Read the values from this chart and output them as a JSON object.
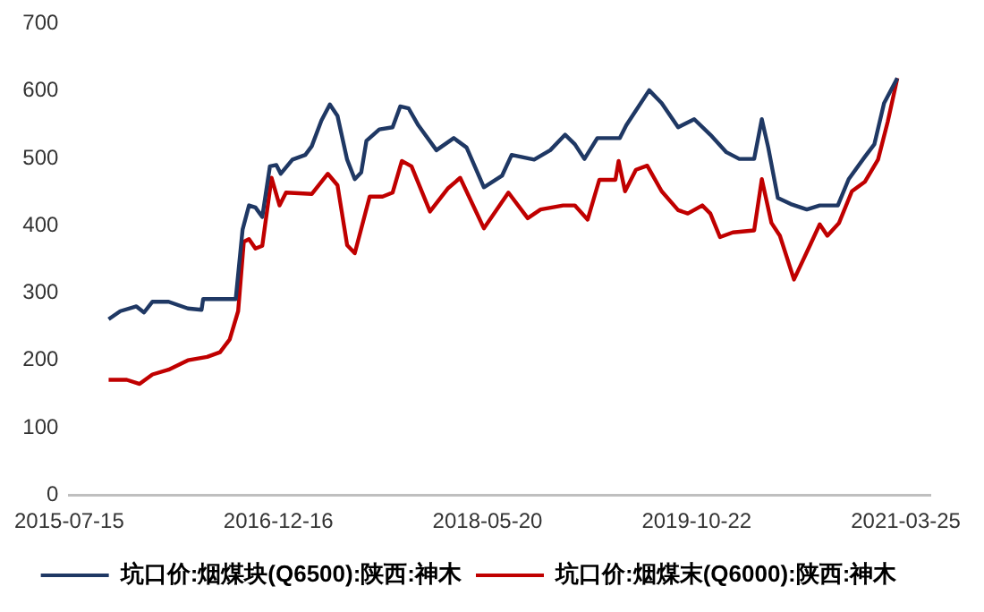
{
  "chart_data": {
    "type": "line",
    "xlim": [
      "2015-07-15",
      "2021-05-25"
    ],
    "xticks": [
      "2015-07-15",
      "2016-12-16",
      "2018-05-20",
      "2019-10-22",
      "2021-03-25"
    ],
    "ylim": [
      0,
      700
    ],
    "yticks": [
      0,
      100,
      200,
      300,
      400,
      500,
      600,
      700
    ],
    "grid": false,
    "legend": "bottom",
    "marker": "none",
    "line_style": "solid",
    "series": [
      {
        "name": "坑口价:烟煤块(Q6500):陕西:神木",
        "color": "#1f3864",
        "x": [
          "2015-10-21",
          "2015-11-19",
          "2015-12-29",
          "2016-01-17",
          "2016-02-07",
          "2016-03-18",
          "2016-05-05",
          "2016-06-08",
          "2016-06-12",
          "2016-09-01",
          "2016-09-18",
          "2016-10-04",
          "2016-10-20",
          "2016-11-06",
          "2016-11-25",
          "2016-12-11",
          "2016-12-22",
          "2017-01-20",
          "2017-02-21",
          "2017-03-09",
          "2017-04-02",
          "2017-04-23",
          "2017-05-12",
          "2017-06-05",
          "2017-06-24",
          "2017-07-10",
          "2017-07-23",
          "2017-08-24",
          "2017-09-26",
          "2017-10-15",
          "2017-11-05",
          "2017-11-29",
          "2018-01-13",
          "2018-02-25",
          "2018-03-29",
          "2018-05-11",
          "2018-06-25",
          "2018-07-19",
          "2018-09-13",
          "2018-10-23",
          "2018-11-29",
          "2018-12-23",
          "2019-01-16",
          "2019-02-17",
          "2019-04-14",
          "2019-04-30",
          "2019-06-26",
          "2019-07-27",
          "2019-09-06",
          "2019-10-16",
          "2019-11-25",
          "2020-01-04",
          "2020-02-05",
          "2020-03-13",
          "2020-04-01",
          "2020-04-17",
          "2020-05-11",
          "2020-06-12",
          "2020-07-22",
          "2020-08-23",
          "2020-10-07",
          "2020-11-03",
          "2020-12-13",
          "2021-01-06",
          "2021-01-30",
          "2021-03-04"
        ],
        "values": [
          261,
          273,
          280,
          271,
          287,
          287,
          277,
          275,
          291,
          291,
          394,
          430,
          427,
          413,
          488,
          490,
          477,
          498,
          505,
          518,
          556,
          580,
          563,
          498,
          469,
          479,
          526,
          543,
          546,
          577,
          574,
          549,
          512,
          530,
          516,
          457,
          474,
          505,
          498,
          512,
          535,
          521,
          499,
          530,
          530,
          549,
          601,
          582,
          546,
          558,
          535,
          509,
          499,
          499,
          558,
          516,
          441,
          432,
          424,
          430,
          430,
          469,
          502,
          521,
          582,
          619
        ]
      },
      {
        "name": "坑口价:烟煤末(Q6000):陕西:神木",
        "color": "#c00000",
        "x": [
          "2015-10-21",
          "2015-12-05",
          "2016-01-06",
          "2016-02-07",
          "2016-03-18",
          "2016-05-05",
          "2016-06-22",
          "2016-07-24",
          "2016-08-17",
          "2016-09-07",
          "2016-09-21",
          "2016-10-04",
          "2016-10-20",
          "2016-11-06",
          "2016-11-29",
          "2016-12-19",
          "2017-01-04",
          "2017-03-09",
          "2017-04-18",
          "2017-05-12",
          "2017-06-05",
          "2017-06-24",
          "2017-07-31",
          "2017-09-01",
          "2017-09-26",
          "2017-10-19",
          "2017-11-12",
          "2017-12-28",
          "2018-02-10",
          "2018-03-13",
          "2018-05-11",
          "2018-07-11",
          "2018-08-28",
          "2018-09-29",
          "2018-11-24",
          "2018-12-23",
          "2019-01-24",
          "2019-02-22",
          "2019-04-03",
          "2019-04-11",
          "2019-04-27",
          "2019-05-24",
          "2019-06-21",
          "2019-07-27",
          "2019-09-06",
          "2019-09-30",
          "2019-11-05",
          "2019-11-25",
          "2019-12-19",
          "2020-01-20",
          "2020-03-13",
          "2020-04-01",
          "2020-04-25",
          "2020-05-16",
          "2020-06-20",
          "2020-07-30",
          "2020-08-23",
          "2020-09-11",
          "2020-10-10",
          "2020-11-11",
          "2020-12-13",
          "2021-01-15",
          "2021-02-08",
          "2021-03-04"
        ],
        "values": [
          171,
          171,
          165,
          179,
          186,
          200,
          205,
          212,
          231,
          273,
          376,
          380,
          366,
          370,
          471,
          430,
          449,
          447,
          477,
          460,
          371,
          359,
          443,
          443,
          449,
          496,
          488,
          421,
          455,
          471,
          396,
          449,
          411,
          424,
          430,
          430,
          409,
          468,
          468,
          496,
          451,
          483,
          489,
          451,
          423,
          418,
          430,
          418,
          383,
          390,
          393,
          469,
          404,
          385,
          320,
          371,
          402,
          385,
          404,
          451,
          465,
          498,
          554,
          619
        ]
      }
    ]
  }
}
